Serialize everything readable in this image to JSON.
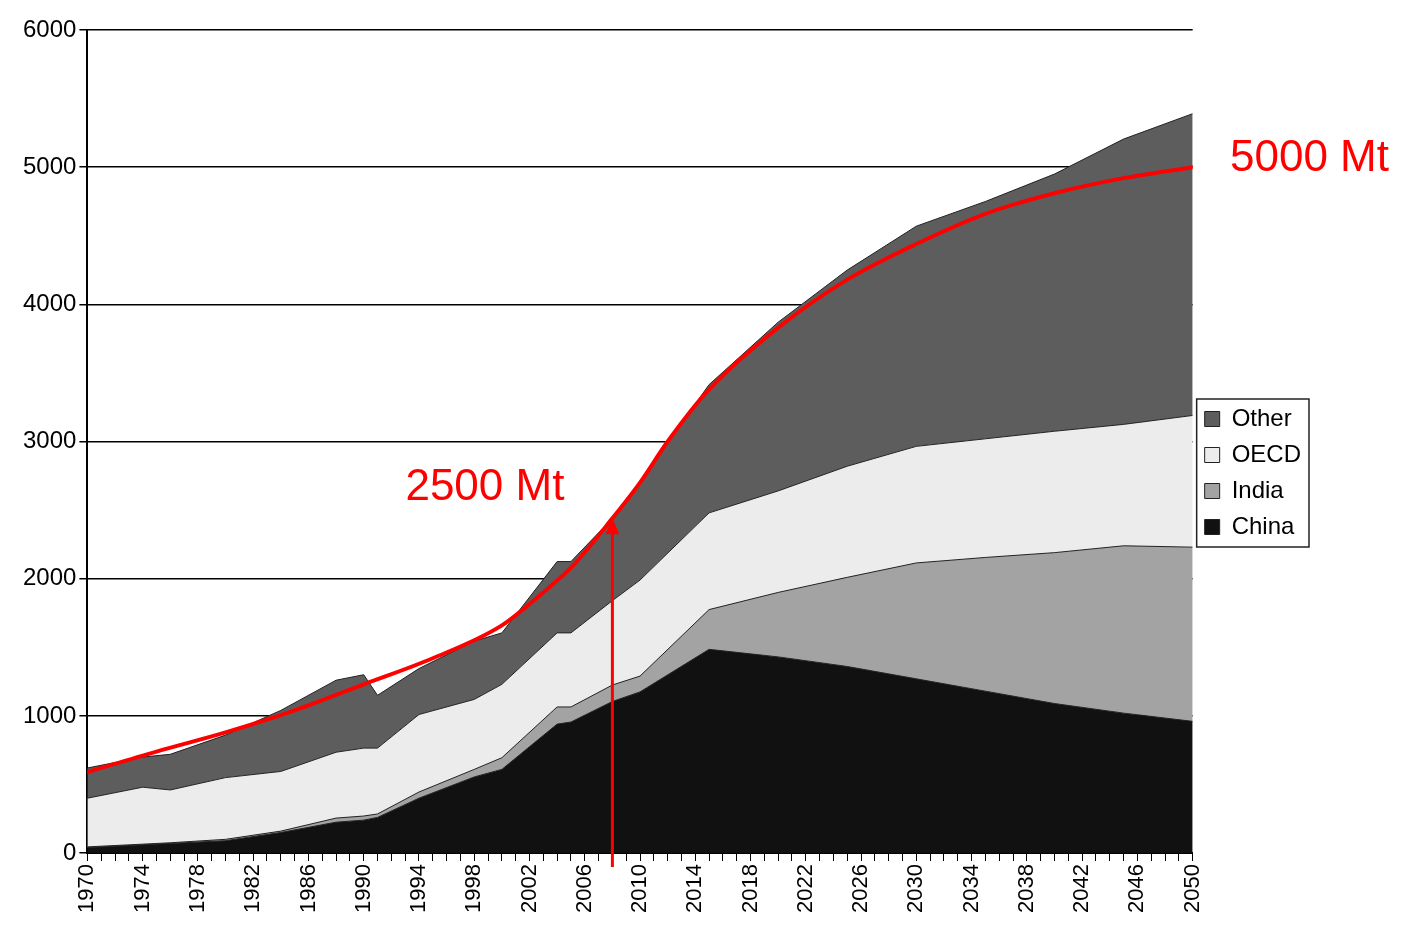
{
  "chart_data": {
    "type": "area",
    "stacked": true,
    "x": [
      1970,
      1974,
      1976,
      1980,
      1984,
      1988,
      1990,
      1991,
      1994,
      1998,
      2000,
      2004,
      2005,
      2008,
      2010,
      2015,
      2020,
      2025,
      2030,
      2035,
      2040,
      2045,
      2050
    ],
    "series": [
      {
        "name": "China",
        "color": "#111111",
        "values": [
          40,
          60,
          70,
          90,
          150,
          225,
          240,
          260,
          400,
          555,
          610,
          940,
          955,
          1105,
          1175,
          1485,
          1430,
          1360,
          1270,
          1180,
          1090,
          1020,
          960
        ]
      },
      {
        "name": "India",
        "color": "#a3a3a3",
        "values": [
          5,
          5,
          5,
          10,
          10,
          30,
          30,
          25,
          45,
          55,
          85,
          125,
          110,
          120,
          115,
          290,
          470,
          650,
          845,
          975,
          1100,
          1220,
          1270
        ]
      },
      {
        "name": "OECD",
        "color": "#ececec",
        "values": [
          355,
          415,
          385,
          450,
          435,
          480,
          495,
          480,
          565,
          510,
          535,
          540,
          540,
          615,
          700,
          705,
          740,
          810,
          850,
          865,
          885,
          885,
          960
        ]
      },
      {
        "name": "Other",
        "color": "#5d5d5d",
        "values": [
          220,
          220,
          260,
          310,
          445,
          525,
          535,
          385,
          335,
          425,
          375,
          520,
          520,
          600,
          720,
          935,
          1230,
          1430,
          1605,
          1730,
          1875,
          2080,
          2200
        ]
      },
      {
        "type": "line",
        "color": "#ff0000",
        "x": [
          1970,
          1975,
          1980,
          1985,
          1990,
          1995,
          2000,
          2003,
          2005,
          2008,
          2010,
          2012,
          2015,
          2020,
          2025,
          2030,
          2035,
          2040,
          2045,
          2050
        ],
        "values": [
          590,
          740,
          880,
          1040,
          1230,
          1420,
          1660,
          1900,
          2080,
          2440,
          2700,
          3000,
          3380,
          3830,
          4180,
          4440,
          4660,
          4810,
          4920,
          5000
        ]
      }
    ],
    "xlim": [
      1970,
      2050
    ],
    "xticks": [
      1970,
      {
        "value": 1971,
        "label": null
      },
      {
        "value": 1972,
        "label": null
      },
      {
        "value": 1973,
        "label": null
      },
      1974,
      {
        "value": 1975,
        "label": null
      },
      {
        "value": 1976,
        "label": null
      },
      {
        "value": 1977,
        "label": null
      },
      1978,
      {
        "value": 1979,
        "label": null
      },
      {
        "value": 1980,
        "label": null
      },
      {
        "value": 1981,
        "label": null
      },
      1982,
      {
        "value": 1983,
        "label": null
      },
      {
        "value": 1984,
        "label": null
      },
      {
        "value": 1985,
        "label": null
      },
      1986,
      {
        "value": 1987,
        "label": null
      },
      {
        "value": 1988,
        "label": null
      },
      {
        "value": 1989,
        "label": null
      },
      1990,
      {
        "value": 1991,
        "label": null
      },
      {
        "value": 1992,
        "label": null
      },
      {
        "value": 1993,
        "label": null
      },
      1994,
      {
        "value": 1995,
        "label": null
      },
      {
        "value": 1996,
        "label": null
      },
      {
        "value": 1997,
        "label": null
      },
      1998,
      {
        "value": 1999,
        "label": null
      },
      {
        "value": 2000,
        "label": null
      },
      {
        "value": 2001,
        "label": null
      },
      2002,
      {
        "value": 2003,
        "label": null
      },
      {
        "value": 2004,
        "label": null
      },
      {
        "value": 2005,
        "label": null
      },
      2006,
      {
        "value": 2007,
        "label": null
      },
      {
        "value": 2008,
        "label": null
      },
      {
        "value": 2009,
        "label": null
      },
      2010,
      {
        "value": 2011,
        "label": null
      },
      {
        "value": 2012,
        "label": null
      },
      {
        "value": 2013,
        "label": null
      },
      2014,
      {
        "value": 2015,
        "label": null
      },
      {
        "value": 2016,
        "label": null
      },
      {
        "value": 2017,
        "label": null
      },
      2018,
      {
        "value": 2019,
        "label": null
      },
      {
        "value": 2020,
        "label": null
      },
      {
        "value": 2021,
        "label": null
      },
      2022,
      {
        "value": 2023,
        "label": null
      },
      {
        "value": 2024,
        "label": null
      },
      {
        "value": 2025,
        "label": null
      },
      2026,
      {
        "value": 2027,
        "label": null
      },
      {
        "value": 2028,
        "label": null
      },
      {
        "value": 2029,
        "label": null
      },
      2030,
      {
        "value": 2031,
        "label": null
      },
      {
        "value": 2032,
        "label": null
      },
      {
        "value": 2033,
        "label": null
      },
      2034,
      {
        "value": 2035,
        "label": null
      },
      {
        "value": 2036,
        "label": null
      },
      {
        "value": 2037,
        "label": null
      },
      2038,
      {
        "value": 2039,
        "label": null
      },
      {
        "value": 2040,
        "label": null
      },
      {
        "value": 2041,
        "label": null
      },
      2042,
      {
        "value": 2043,
        "label": null
      },
      {
        "value": 2044,
        "label": null
      },
      {
        "value": 2045,
        "label": null
      },
      2046,
      {
        "value": 2047,
        "label": null
      },
      {
        "value": 2048,
        "label": null
      },
      {
        "value": 2049,
        "label": null
      },
      2050
    ],
    "ylim": [
      0,
      6000
    ],
    "yticks": [
      0,
      1000,
      2000,
      3000,
      4000,
      5000,
      6000
    ],
    "grid": "y",
    "legend": "right",
    "annotations": [
      {
        "text": "2500 Mt",
        "x": 2008,
        "y": 2440
      },
      {
        "text": "5000 Mt",
        "x": 2050,
        "y": 5000
      }
    ]
  }
}
